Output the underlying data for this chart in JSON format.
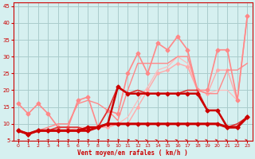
{
  "xlabel": "Vent moyen/en rafales ( km/h )",
  "background_color": "#d6f0f0",
  "grid_color": "#aacccc",
  "xlim": [
    -0.5,
    23.5
  ],
  "ylim": [
    5,
    46
  ],
  "yticks": [
    5,
    10,
    15,
    20,
    25,
    30,
    35,
    40,
    45
  ],
  "xticks": [
    0,
    1,
    2,
    3,
    4,
    5,
    6,
    7,
    8,
    9,
    10,
    11,
    12,
    13,
    14,
    15,
    16,
    17,
    18,
    19,
    20,
    21,
    22,
    23
  ],
  "series": [
    {
      "x": [
        0,
        1,
        2,
        3,
        4,
        5,
        6,
        7,
        8,
        9,
        10,
        11,
        12,
        13,
        14,
        15,
        16,
        17,
        18,
        19,
        20,
        21,
        22,
        23
      ],
      "y": [
        8,
        7,
        8,
        8,
        8,
        8,
        8,
        8,
        9,
        10,
        10,
        10,
        10,
        10,
        10,
        10,
        10,
        10,
        10,
        10,
        10,
        9,
        9,
        12
      ],
      "color": "#cc0000",
      "lw": 2.2,
      "marker": "D",
      "ms": 2.5,
      "zorder": 10
    },
    {
      "x": [
        0,
        1,
        2,
        3,
        4,
        5,
        6,
        7,
        8,
        9,
        10,
        11,
        12,
        13,
        14,
        15,
        16,
        17,
        18,
        19,
        20,
        21,
        22,
        23
      ],
      "y": [
        8,
        7,
        8,
        8,
        8,
        8,
        8,
        9,
        9,
        10,
        21,
        19,
        19,
        19,
        19,
        19,
        19,
        19,
        19,
        14,
        14,
        9,
        9,
        12
      ],
      "color": "#cc0000",
      "lw": 1.8,
      "marker": "D",
      "ms": 2.5,
      "zorder": 9
    },
    {
      "x": [
        0,
        1,
        2,
        3,
        4,
        5,
        6,
        7,
        8,
        9,
        10,
        11,
        12,
        13,
        14,
        15,
        16,
        17,
        18,
        19,
        20,
        21,
        22,
        23
      ],
      "y": [
        8,
        7,
        8,
        8,
        9,
        9,
        9,
        8,
        9,
        14,
        21,
        19,
        20,
        19,
        19,
        19,
        19,
        20,
        20,
        14,
        14,
        9,
        10,
        12
      ],
      "color": "#dd3333",
      "lw": 1.2,
      "marker": null,
      "ms": 0,
      "zorder": 8
    },
    {
      "x": [
        0,
        1,
        2,
        3,
        4,
        5,
        6,
        7,
        8,
        9,
        10,
        11,
        12,
        13,
        14,
        15,
        16,
        17,
        18,
        19,
        20,
        21,
        22,
        23
      ],
      "y": [
        16,
        13,
        16,
        13,
        9,
        9,
        17,
        18,
        9,
        14,
        13,
        25,
        31,
        25,
        34,
        32,
        36,
        32,
        20,
        20,
        32,
        32,
        17,
        42
      ],
      "color": "#ff8888",
      "lw": 1.2,
      "marker": "D",
      "ms": 2.5,
      "zorder": 6
    },
    {
      "x": [
        0,
        1,
        2,
        3,
        4,
        5,
        6,
        7,
        8,
        9,
        10,
        11,
        12,
        13,
        14,
        15,
        16,
        17,
        18,
        19,
        20,
        21,
        22,
        23
      ],
      "y": [
        8,
        7,
        8,
        9,
        10,
        10,
        16,
        17,
        16,
        14,
        11,
        20,
        28,
        28,
        28,
        28,
        30,
        30,
        20,
        19,
        19,
        26,
        26,
        28
      ],
      "color": "#ff8888",
      "lw": 1.0,
      "marker": null,
      "ms": 0,
      "zorder": 5
    },
    {
      "x": [
        0,
        1,
        2,
        3,
        4,
        5,
        6,
        7,
        8,
        9,
        10,
        11,
        12,
        13,
        14,
        15,
        16,
        17,
        18,
        19,
        20,
        21,
        22,
        23
      ],
      "y": [
        8,
        7,
        8,
        8,
        8,
        8,
        8,
        8,
        9,
        9,
        10,
        10,
        15,
        20,
        25,
        26,
        28,
        27,
        20,
        19,
        26,
        26,
        17,
        42
      ],
      "color": "#ffaaaa",
      "lw": 1.0,
      "marker": "D",
      "ms": 2.0,
      "zorder": 4
    },
    {
      "x": [
        0,
        1,
        2,
        3,
        4,
        5,
        6,
        7,
        8,
        9,
        10,
        11,
        12,
        13,
        14,
        15,
        16,
        17,
        18,
        19,
        20,
        21,
        22,
        23
      ],
      "y": [
        8,
        7,
        8,
        8,
        8,
        8,
        9,
        9,
        9,
        9,
        10,
        12,
        17,
        21,
        26,
        27,
        30,
        28,
        20,
        19,
        20,
        20,
        17,
        42
      ],
      "color": "#ffbbbb",
      "lw": 0.9,
      "marker": null,
      "ms": 0,
      "zorder": 3
    }
  ],
  "wind_arrow_angles": [
    45,
    45,
    60,
    60,
    60,
    45,
    45,
    45,
    45,
    45,
    30,
    30,
    25,
    25,
    20,
    20,
    15,
    15,
    10,
    10,
    5,
    5,
    5,
    5
  ]
}
